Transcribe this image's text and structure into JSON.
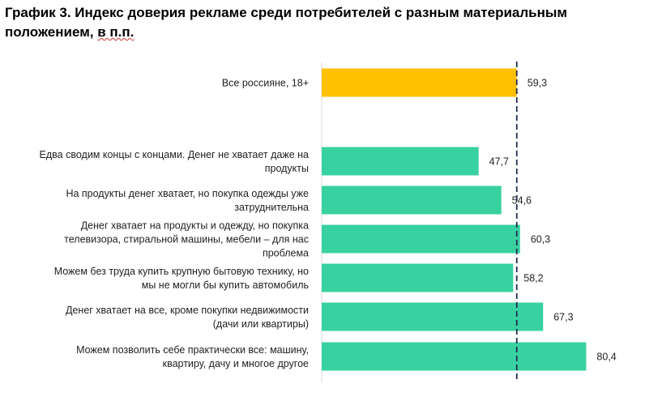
{
  "title": {
    "main": "График 3. Индекс доверия рекламе среди потребителей с разным материальным положением,",
    "tail": "в п.п."
  },
  "colors": {
    "highlight": "#FFC000",
    "bars": "#38D1A0",
    "axis": "#d9d9d9",
    "reference_line": "#1f2d4d"
  },
  "chart_data": {
    "type": "bar",
    "orientation": "horizontal",
    "reference_line": 59.3,
    "xlim": [
      0,
      100
    ],
    "categories": [
      [
        "Все россияне, 18+"
      ],
      [
        "Едва сводим  концы с концами. Денег не хватает даже на",
        "продукты"
      ],
      [
        "На продукты денег хватает, но покупка одежды уже",
        "затруднительна"
      ],
      [
        "Денег хватает на продукты и одежду, но покупка",
        "телевизора, стиральной машины, мебели – для нас",
        "проблема"
      ],
      [
        "Можем без труда купить крупную бытовую технику, но",
        "мы не могли бы купить автомобиль"
      ],
      [
        "Денег хватает на все, кроме покупки недвижимости",
        "(дачи или квартиры)"
      ],
      [
        "Можем позволить себе практически все: машину,",
        "квартиру, дачу и многое другое"
      ]
    ],
    "values": [
      59.3,
      47.7,
      54.6,
      60.3,
      58.2,
      67.3,
      80.4
    ],
    "value_labels": [
      "59,3",
      "47,7",
      "54,6",
      "60,3",
      "58,2",
      "67,3",
      "80,4"
    ],
    "highlight_index": 0
  }
}
